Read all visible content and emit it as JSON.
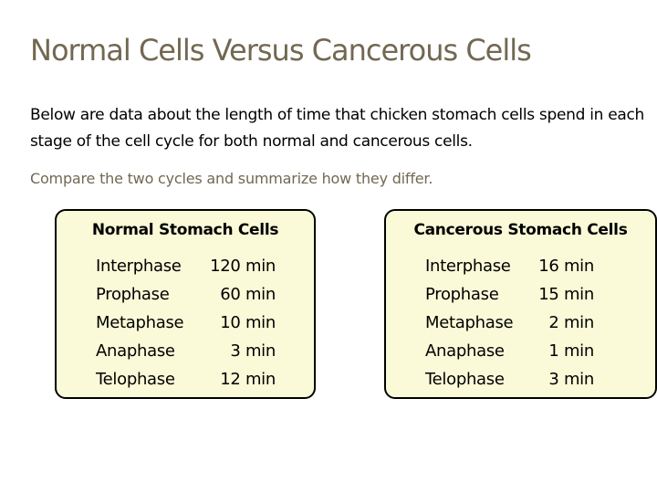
{
  "title": "Normal Cells Versus Cancerous Cells",
  "intro": "Below are data about the length of time that chicken stomach cells spend in each stage of the cell cycle for both normal and cancerous cells.",
  "instruction": "Compare the two cycles and summarize how they differ.",
  "normal": {
    "title": "Normal Stomach Cells",
    "rows": [
      {
        "stage": "Interphase",
        "time": "120 min"
      },
      {
        "stage": "Prophase",
        "time": "60 min"
      },
      {
        "stage": "Metaphase",
        "time": "10 min"
      },
      {
        "stage": "Anaphase",
        "time": "3 min"
      },
      {
        "stage": "Telophase",
        "time": "12 min"
      }
    ]
  },
  "cancerous": {
    "title": "Cancerous Stomach Cells",
    "rows": [
      {
        "stage": "Interphase",
        "time": "16 min"
      },
      {
        "stage": "Prophase",
        "time": "15 min"
      },
      {
        "stage": "Metaphase",
        "time": "2 min"
      },
      {
        "stage": "Anaphase",
        "time": "1 min"
      },
      {
        "stage": "Telophase",
        "time": "3 min"
      }
    ]
  },
  "colors": {
    "title_text": "#726852",
    "box_fill": "#fbfad8",
    "box_border": "#000000"
  }
}
